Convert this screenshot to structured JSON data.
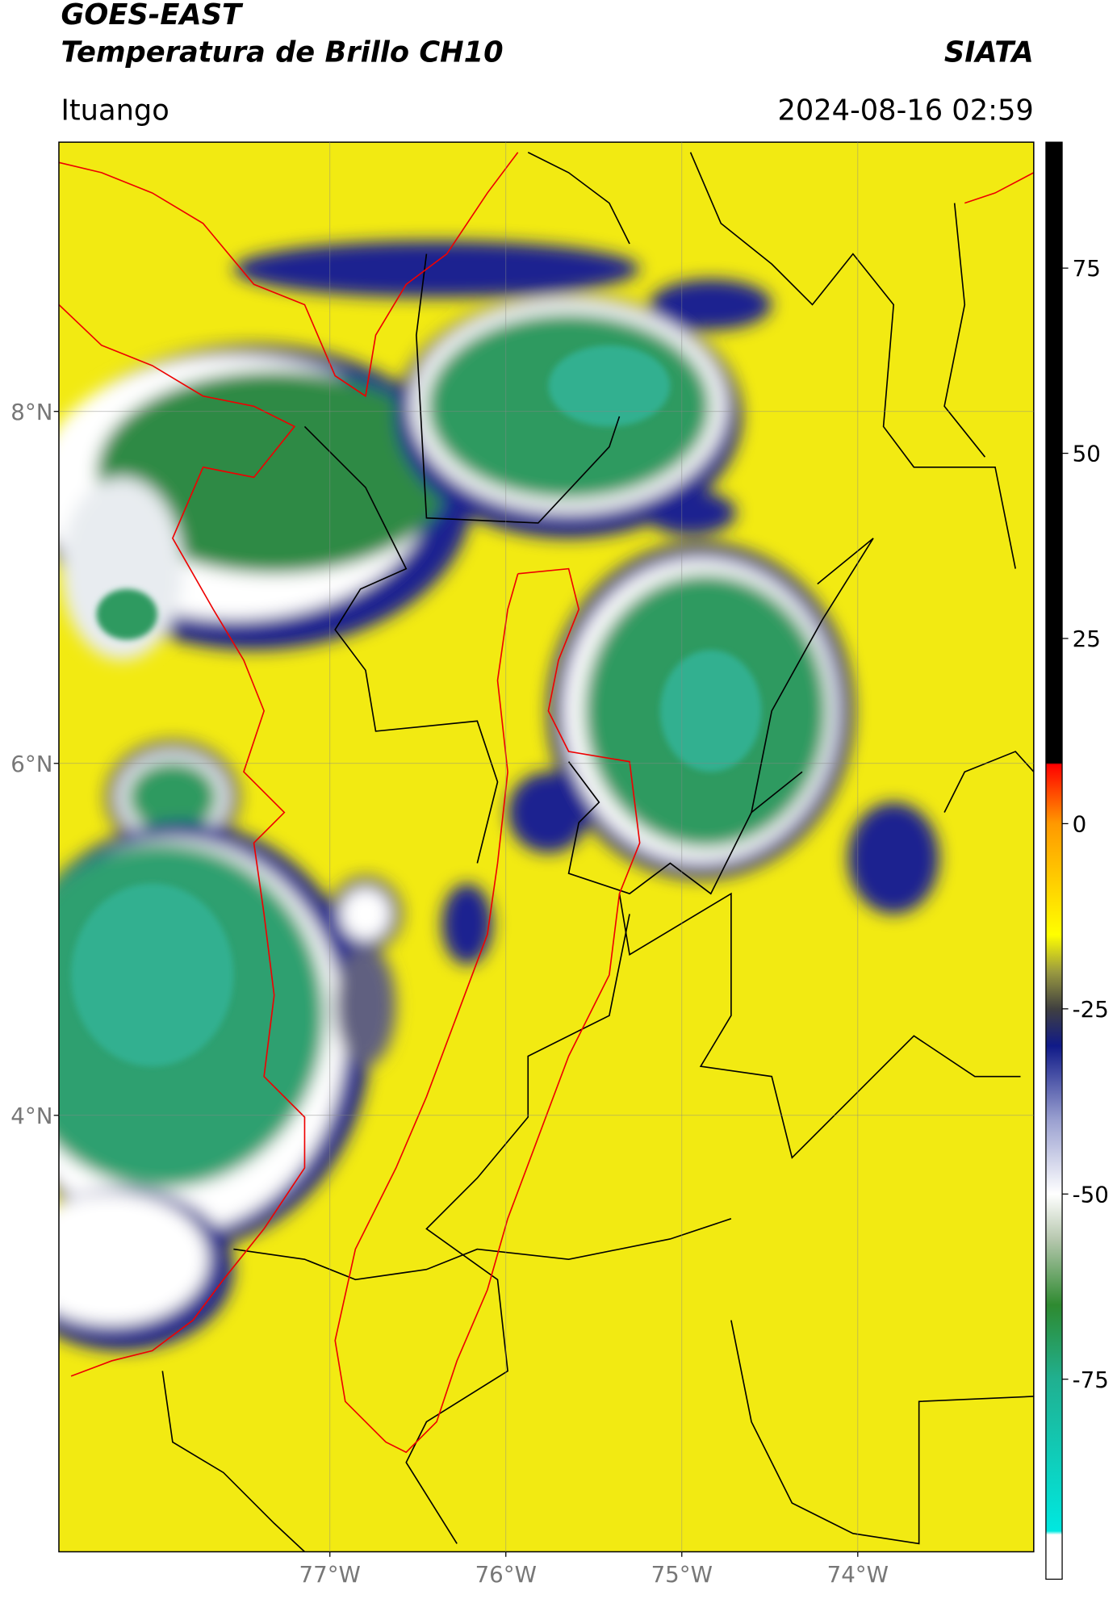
{
  "header": {
    "title": "GOES-EAST",
    "subtitle": "Temperatura de Brillo CH10",
    "organization": "SIATA",
    "location": "Ituango",
    "datetime": "2024-08-16 02:59"
  },
  "map": {
    "latlim": [
      1.52,
      9.53
    ],
    "lonlim": [
      -78.54,
      -73.0
    ],
    "lat_ticks": [
      {
        "value": 8,
        "label": "8°N"
      },
      {
        "value": 6,
        "label": "6°N"
      },
      {
        "value": 4,
        "label": "4°N"
      }
    ],
    "lon_ticks": [
      {
        "value": -77,
        "label": "77°W"
      },
      {
        "value": -76,
        "label": "76°W"
      },
      {
        "value": -75,
        "label": "75°W"
      },
      {
        "value": -74,
        "label": "74°W"
      }
    ],
    "grid": true,
    "colorbar": {
      "lim": [
        -102,
        92
      ],
      "ticks": [
        75,
        50,
        25,
        0,
        -25,
        -50,
        -75
      ],
      "stops": [
        {
          "value": -102,
          "color": "#ffffff"
        },
        {
          "value": -96,
          "color": "#ffffff"
        },
        {
          "value": -95.5,
          "color": "#00e8e0"
        },
        {
          "value": -75,
          "color": "#20b090"
        },
        {
          "value": -65,
          "color": "#2e8a30"
        },
        {
          "value": -56,
          "color": "#b8c8b0"
        },
        {
          "value": -50,
          "color": "#ffffff"
        },
        {
          "value": -40,
          "color": "#9aa0d0"
        },
        {
          "value": -30,
          "color": "#101a88"
        },
        {
          "value": -25,
          "color": "#404040"
        },
        {
          "value": -20,
          "color": "#9a9a40"
        },
        {
          "value": -15,
          "color": "#ffff00"
        },
        {
          "value": 0,
          "color": "#ff9900"
        },
        {
          "value": 8,
          "color": "#ff0000"
        },
        {
          "value": 8.2,
          "color": "#000000"
        },
        {
          "value": 92,
          "color": "#000000"
        }
      ]
    }
  }
}
